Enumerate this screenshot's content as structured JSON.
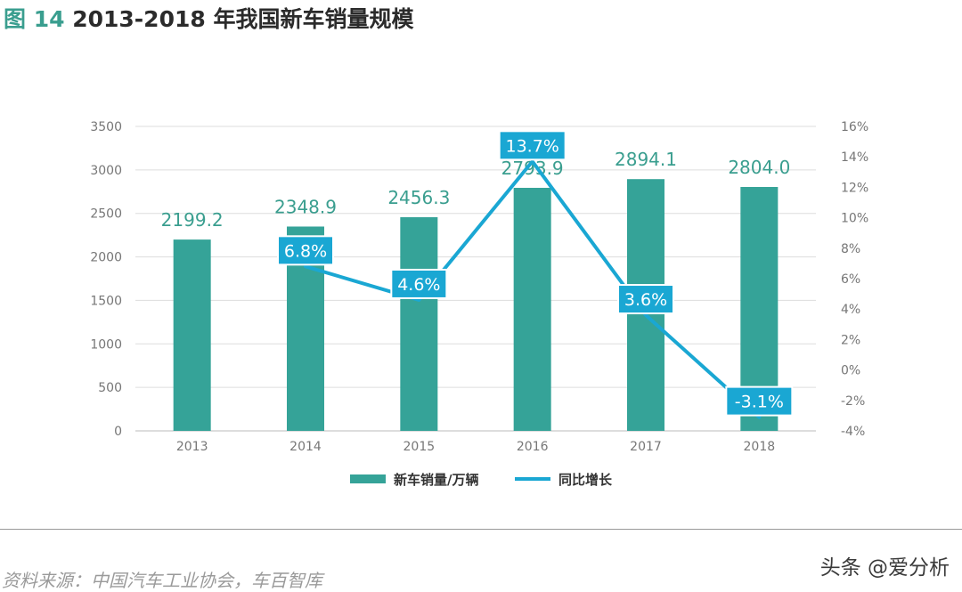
{
  "title": {
    "figure_label": "图 14",
    "text": "2013-2018 年我国新车销量规模"
  },
  "source_note": "资料来源：中国汽车工业协会，车百智库",
  "watermark": "头条 @爱分析",
  "colors": {
    "bar": "#35a398",
    "line": "#1aa7d3",
    "label_box": "#1aa7d3",
    "bar_label": "#3a9e8f",
    "axis_text": "#777777",
    "grid": "#dddddd"
  },
  "chart_data": {
    "type": "bar",
    "categories": [
      "2013",
      "2014",
      "2015",
      "2016",
      "2017",
      "2018"
    ],
    "series": [
      {
        "name": "新车销量/万辆",
        "type": "bar",
        "axis": "left",
        "values": [
          2199.2,
          2348.9,
          2456.3,
          2793.9,
          2894.1,
          2804.0
        ],
        "labels": [
          "2199.2",
          "2348.9",
          "2456.3",
          "2793.9",
          "2894.1",
          "2804.0"
        ]
      },
      {
        "name": "同比增长",
        "type": "line",
        "axis": "right",
        "values": [
          null,
          6.8,
          4.6,
          13.7,
          3.6,
          -3.1
        ],
        "labels": [
          "",
          "6.8%",
          "4.6%",
          "13.7%",
          "3.6%",
          "-3.1%"
        ]
      }
    ],
    "y_left": {
      "range": [
        0,
        3500
      ],
      "ticks": [
        "0",
        "500",
        "1000",
        "1500",
        "2000",
        "2500",
        "3000",
        "3500"
      ]
    },
    "y_right": {
      "range": [
        -4,
        16
      ],
      "ticks": [
        "-4%",
        "-2%",
        "0%",
        "2%",
        "4%",
        "6%",
        "8%",
        "10%",
        "12%",
        "14%",
        "16%"
      ]
    },
    "grid": true,
    "legend_position": "bottom-center"
  }
}
